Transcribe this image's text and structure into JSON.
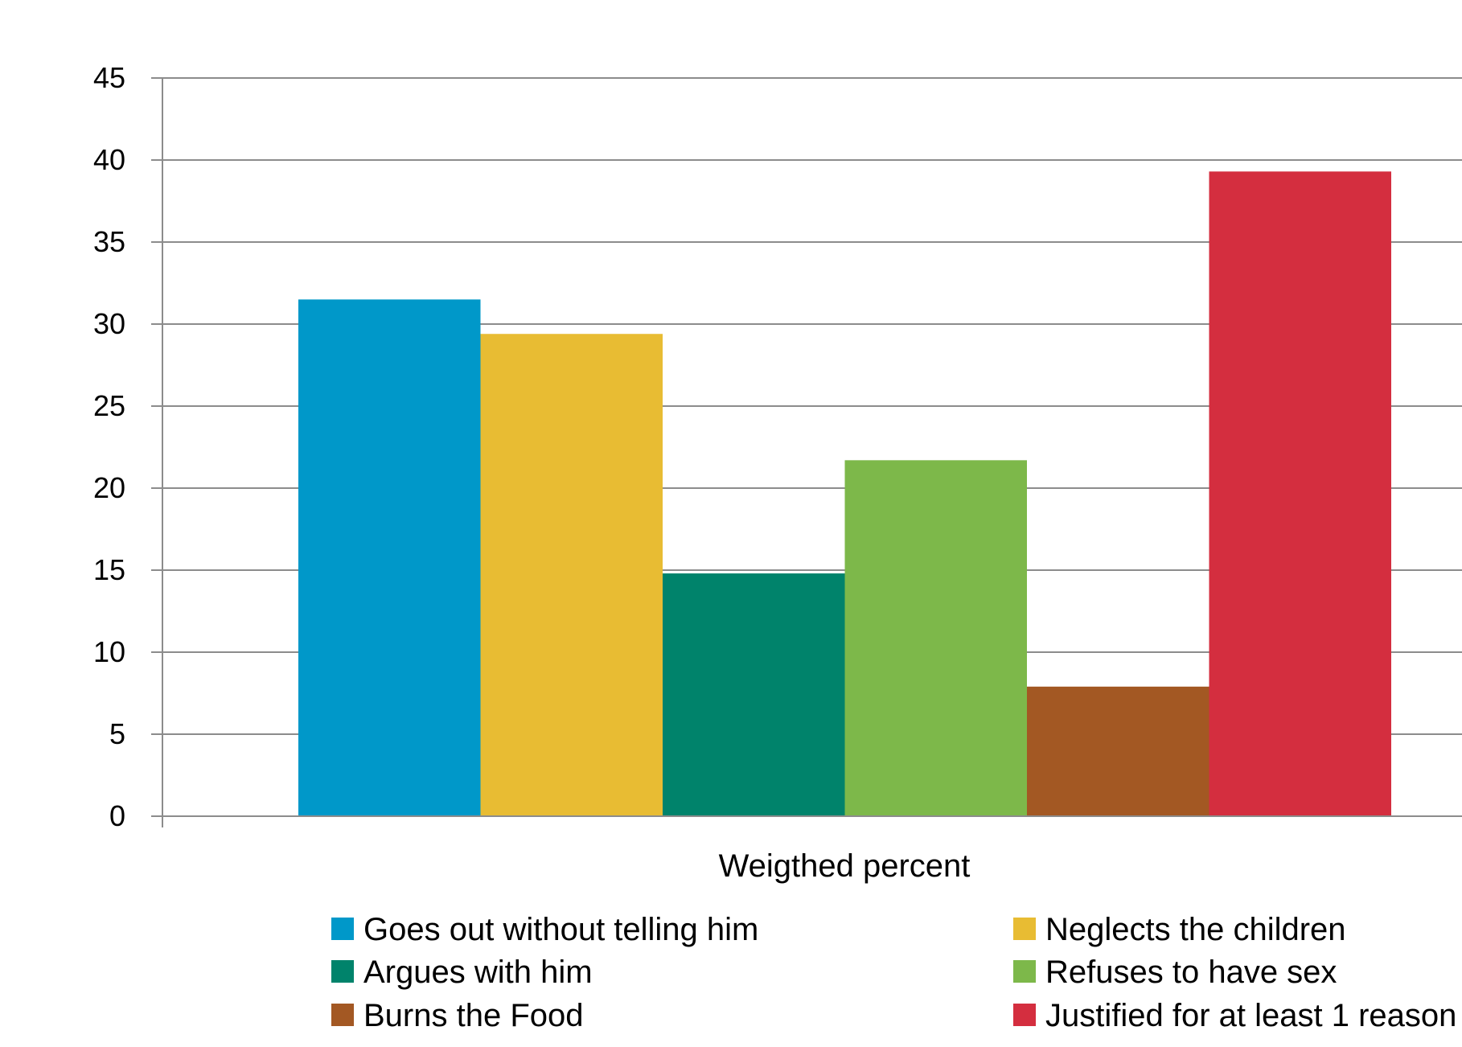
{
  "chart_data": {
    "type": "bar",
    "title": "",
    "xlabel": "Weigthed percent",
    "ylabel": "",
    "ylim": [
      0,
      45
    ],
    "yticks": [
      0,
      5,
      10,
      15,
      20,
      25,
      30,
      35,
      40,
      45
    ],
    "grid": true,
    "legend_position": "bottom",
    "categories": [
      "Weigthed percent"
    ],
    "series": [
      {
        "name": "Goes out without telling him",
        "values": [
          31.5
        ],
        "color": "#0098c9"
      },
      {
        "name": "Neglects the children",
        "values": [
          29.4
        ],
        "color": "#e8bc33"
      },
      {
        "name": "Argues with him",
        "values": [
          14.8
        ],
        "color": "#00836b"
      },
      {
        "name": "Refuses to have sex",
        "values": [
          21.7
        ],
        "color": "#7db84a"
      },
      {
        "name": "Burns the Food",
        "values": [
          7.9
        ],
        "color": "#a35823"
      },
      {
        "name": "Justified for at least 1 reason",
        "values": [
          39.3
        ],
        "color": "#d42e3f"
      }
    ]
  }
}
